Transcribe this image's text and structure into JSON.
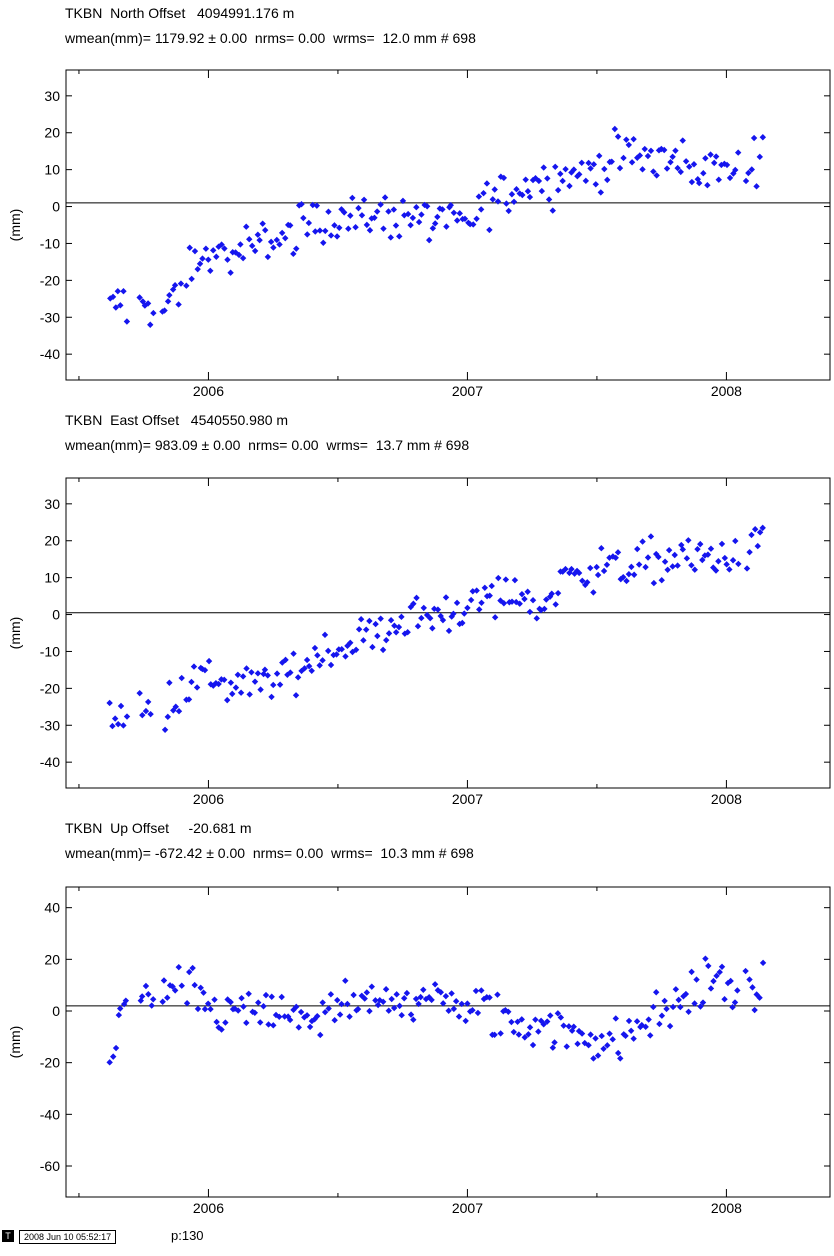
{
  "chart_data": [
    {
      "type": "scatter",
      "title": "TKBN  North Offset   4094991.176 m",
      "subtitle": "wmean(mm)= 1179.92 ± 0.00  nrms= 0.00  wrms=  12.0 mm # 698",
      "ylabel": "(mm)",
      "xlim": [
        2005.45,
        2008.4
      ],
      "ylim": [
        -47,
        37
      ],
      "yticks": [
        30,
        20,
        10,
        0,
        -10,
        -20,
        -30,
        -40
      ],
      "xticks": [
        2006,
        2007,
        2008
      ],
      "baseline": 1,
      "color": "#1515ee",
      "anchors": [
        [
          2005.62,
          -28
        ],
        [
          2005.66,
          -26
        ],
        [
          2005.75,
          -27
        ],
        [
          2005.83,
          -28
        ],
        [
          2005.88,
          -24
        ],
        [
          2005.92,
          -18
        ],
        [
          2005.97,
          -14
        ],
        [
          2006.05,
          -13
        ],
        [
          2006.12,
          -14
        ],
        [
          2006.2,
          -10
        ],
        [
          2006.3,
          -8
        ],
        [
          2006.38,
          -4
        ],
        [
          2006.48,
          -3
        ],
        [
          2006.58,
          -3
        ],
        [
          2006.68,
          -3
        ],
        [
          2006.78,
          -2
        ],
        [
          2006.88,
          -4
        ],
        [
          2006.98,
          -5
        ],
        [
          2007.05,
          -1
        ],
        [
          2007.12,
          3
        ],
        [
          2007.22,
          6
        ],
        [
          2007.32,
          8
        ],
        [
          2007.42,
          9
        ],
        [
          2007.52,
          11
        ],
        [
          2007.62,
          14
        ],
        [
          2007.72,
          13
        ],
        [
          2007.82,
          12
        ],
        [
          2007.92,
          10
        ],
        [
          2008.02,
          10
        ],
        [
          2008.08,
          9
        ],
        [
          2008.14,
          17
        ]
      ],
      "spread": 5,
      "gaps": [
        [
          2005.69,
          2005.73
        ],
        [
          2005.79,
          2005.82
        ],
        [
          2005.9,
          2005.91
        ],
        [
          2008.05,
          2008.07
        ]
      ]
    },
    {
      "type": "scatter",
      "title": "TKBN  East Offset   4540550.980 m",
      "subtitle": "wmean(mm)= 983.09 ± 0.00  nrms= 0.00  wrms=  13.7 mm # 698",
      "ylabel": "(mm)",
      "xlim": [
        2005.45,
        2008.4
      ],
      "ylim": [
        -47,
        37
      ],
      "yticks": [
        30,
        20,
        10,
        0,
        -10,
        -20,
        -30,
        -40
      ],
      "xticks": [
        2006,
        2007,
        2008
      ],
      "baseline": 0.5,
      "color": "#1515ee",
      "anchors": [
        [
          2005.62,
          -28
        ],
        [
          2005.66,
          -27
        ],
        [
          2005.75,
          -27
        ],
        [
          2005.83,
          -23
        ],
        [
          2005.88,
          -20
        ],
        [
          2005.97,
          -18
        ],
        [
          2006.05,
          -19
        ],
        [
          2006.12,
          -20
        ],
        [
          2006.2,
          -19
        ],
        [
          2006.3,
          -16
        ],
        [
          2006.38,
          -13
        ],
        [
          2006.48,
          -10
        ],
        [
          2006.58,
          -7
        ],
        [
          2006.68,
          -4
        ],
        [
          2006.78,
          -1
        ],
        [
          2006.88,
          0
        ],
        [
          2006.98,
          2
        ],
        [
          2007.05,
          4
        ],
        [
          2007.12,
          5
        ],
        [
          2007.22,
          5
        ],
        [
          2007.28,
          1
        ],
        [
          2007.35,
          8
        ],
        [
          2007.45,
          12
        ],
        [
          2007.55,
          13
        ],
        [
          2007.65,
          13
        ],
        [
          2007.75,
          15
        ],
        [
          2007.85,
          15
        ],
        [
          2007.95,
          15
        ],
        [
          2008.02,
          16
        ],
        [
          2008.08,
          15
        ],
        [
          2008.14,
          23
        ]
      ],
      "spread": 5,
      "gaps": [
        [
          2005.69,
          2005.73
        ],
        [
          2005.79,
          2005.82
        ],
        [
          2005.9,
          2005.91
        ],
        [
          2008.05,
          2008.07
        ]
      ]
    },
    {
      "type": "scatter",
      "title": "TKBN  Up Offset     -20.681 m",
      "subtitle": "wmean(mm)= -672.42 ± 0.00  nrms= 0.00  wrms=  10.3 mm # 698",
      "ylabel": "(mm)",
      "xlim": [
        2005.45,
        2008.4
      ],
      "ylim": [
        -72,
        48
      ],
      "yticks": [
        40,
        20,
        0,
        -20,
        -40,
        -60
      ],
      "xticks": [
        2006,
        2007,
        2008
      ],
      "baseline": 2,
      "color": "#1515ee",
      "anchors": [
        [
          2005.62,
          -20
        ],
        [
          2005.66,
          0
        ],
        [
          2005.75,
          5
        ],
        [
          2005.83,
          4
        ],
        [
          2005.88,
          10
        ],
        [
          2005.95,
          6
        ],
        [
          2006.05,
          -2
        ],
        [
          2006.12,
          0
        ],
        [
          2006.2,
          -1
        ],
        [
          2006.3,
          -2
        ],
        [
          2006.4,
          -3
        ],
        [
          2006.5,
          1
        ],
        [
          2006.6,
          2
        ],
        [
          2006.7,
          3
        ],
        [
          2006.8,
          6
        ],
        [
          2006.9,
          3
        ],
        [
          2007.0,
          1
        ],
        [
          2007.08,
          -1
        ],
        [
          2007.18,
          -6
        ],
        [
          2007.28,
          -5
        ],
        [
          2007.38,
          -8
        ],
        [
          2007.48,
          -10
        ],
        [
          2007.58,
          -13
        ],
        [
          2007.68,
          -5
        ],
        [
          2007.78,
          2
        ],
        [
          2007.88,
          8
        ],
        [
          2007.95,
          14
        ],
        [
          2008.02,
          10
        ],
        [
          2008.08,
          5
        ],
        [
          2008.14,
          8
        ]
      ],
      "spread": 8,
      "gaps": [
        [
          2005.69,
          2005.73
        ],
        [
          2005.79,
          2005.82
        ],
        [
          2005.9,
          2005.91
        ],
        [
          2008.05,
          2008.07
        ]
      ]
    }
  ],
  "footer": {
    "badge": "T",
    "stamp": "2008 Jun 10 05:52:17",
    "page": "p:130"
  }
}
